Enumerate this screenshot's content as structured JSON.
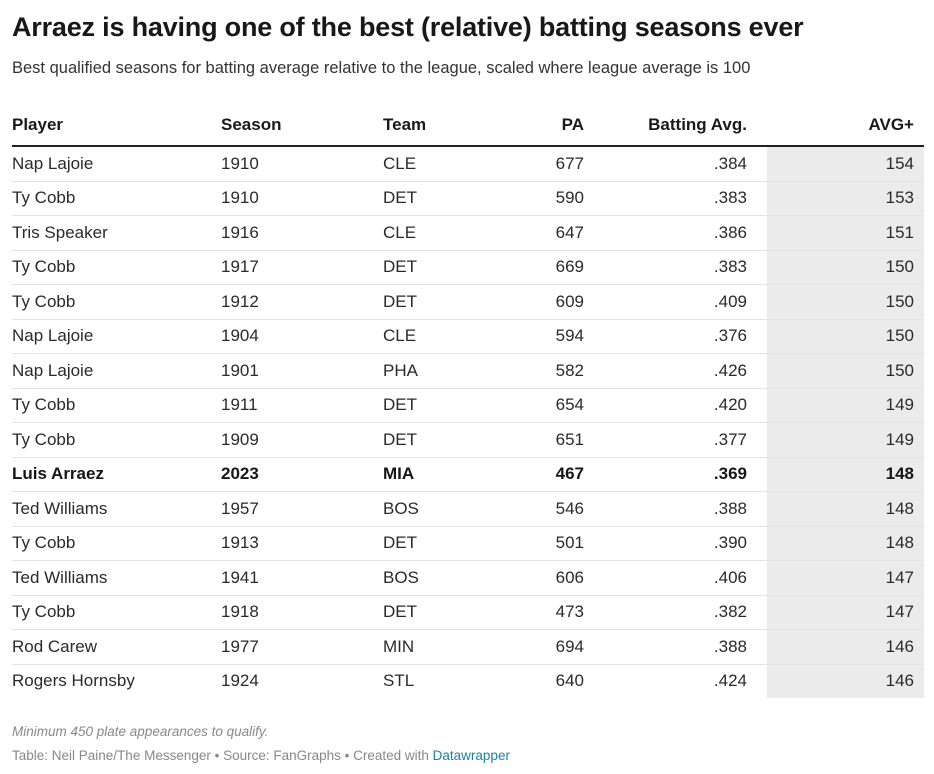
{
  "header": {
    "title": "Arraez is having one of the best (relative) batting seasons ever",
    "subtitle": "Best qualified seasons for batting average relative to the league, scaled where league average is 100"
  },
  "chart_data": {
    "type": "table",
    "columns": [
      "Player",
      "Season",
      "Team",
      "PA",
      "Batting Avg.",
      "AVG+"
    ],
    "rows": [
      {
        "player": "Nap Lajoie",
        "season": "1910",
        "team": "CLE",
        "pa": "677",
        "avg": ".384",
        "avg_plus": "154",
        "highlight": false
      },
      {
        "player": "Ty Cobb",
        "season": "1910",
        "team": "DET",
        "pa": "590",
        "avg": ".383",
        "avg_plus": "153",
        "highlight": false
      },
      {
        "player": "Tris Speaker",
        "season": "1916",
        "team": "CLE",
        "pa": "647",
        "avg": ".386",
        "avg_plus": "151",
        "highlight": false
      },
      {
        "player": "Ty Cobb",
        "season": "1917",
        "team": "DET",
        "pa": "669",
        "avg": ".383",
        "avg_plus": "150",
        "highlight": false
      },
      {
        "player": "Ty Cobb",
        "season": "1912",
        "team": "DET",
        "pa": "609",
        "avg": ".409",
        "avg_plus": "150",
        "highlight": false
      },
      {
        "player": "Nap Lajoie",
        "season": "1904",
        "team": "CLE",
        "pa": "594",
        "avg": ".376",
        "avg_plus": "150",
        "highlight": false
      },
      {
        "player": "Nap Lajoie",
        "season": "1901",
        "team": "PHA",
        "pa": "582",
        "avg": ".426",
        "avg_plus": "150",
        "highlight": false
      },
      {
        "player": "Ty Cobb",
        "season": "1911",
        "team": "DET",
        "pa": "654",
        "avg": ".420",
        "avg_plus": "149",
        "highlight": false
      },
      {
        "player": "Ty Cobb",
        "season": "1909",
        "team": "DET",
        "pa": "651",
        "avg": ".377",
        "avg_plus": "149",
        "highlight": false
      },
      {
        "player": "Luis Arraez",
        "season": "2023",
        "team": "MIA",
        "pa": "467",
        "avg": ".369",
        "avg_plus": "148",
        "highlight": true
      },
      {
        "player": "Ted Williams",
        "season": "1957",
        "team": "BOS",
        "pa": "546",
        "avg": ".388",
        "avg_plus": "148",
        "highlight": false
      },
      {
        "player": "Ty Cobb",
        "season": "1913",
        "team": "DET",
        "pa": "501",
        "avg": ".390",
        "avg_plus": "148",
        "highlight": false
      },
      {
        "player": "Ted Williams",
        "season": "1941",
        "team": "BOS",
        "pa": "606",
        "avg": ".406",
        "avg_plus": "147",
        "highlight": false
      },
      {
        "player": "Ty Cobb",
        "season": "1918",
        "team": "DET",
        "pa": "473",
        "avg": ".382",
        "avg_plus": "147",
        "highlight": false
      },
      {
        "player": "Rod Carew",
        "season": "1977",
        "team": "MIN",
        "pa": "694",
        "avg": ".388",
        "avg_plus": "146",
        "highlight": false
      },
      {
        "player": "Rogers Hornsby",
        "season": "1924",
        "team": "STL",
        "pa": "640",
        "avg": ".424",
        "avg_plus": "146",
        "highlight": false
      }
    ]
  },
  "footer": {
    "note": "Minimum 450 plate appearances to qualify.",
    "credit": "Table: Neil Paine/The Messenger • Source: FanGraphs • Created with ",
    "credit_link": "Datawrapper"
  },
  "colors": {
    "highlight_column_bg": "#ebebeb",
    "link": "#1d81a2",
    "footer_text": "#888888"
  }
}
